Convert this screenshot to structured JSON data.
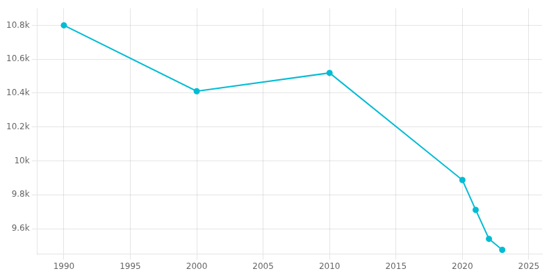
{
  "chart_data": {
    "type": "line",
    "x": [
      1990,
      2000,
      2010,
      2020,
      2021,
      2022,
      2023
    ],
    "values": [
      10800,
      10411,
      10519,
      9887,
      9711,
      9540,
      9475
    ],
    "color": "#00bcd4",
    "marker": "circle",
    "xlim": [
      1988,
      2026
    ],
    "xticks": [
      1990,
      1995,
      2000,
      2005,
      2010,
      2015,
      2020,
      2025
    ],
    "ylim": [
      9450,
      10900
    ],
    "yticks": [
      {
        "value": 9600,
        "label": "9.6k"
      },
      {
        "value": 9800,
        "label": "9.8k"
      },
      {
        "value": 10000,
        "label": "10k"
      },
      {
        "value": 10200,
        "label": "10.2k"
      },
      {
        "value": 10400,
        "label": "10.4k"
      },
      {
        "value": 10600,
        "label": "10.6k"
      },
      {
        "value": 10800,
        "label": "10.8k"
      }
    ],
    "grid": true
  }
}
